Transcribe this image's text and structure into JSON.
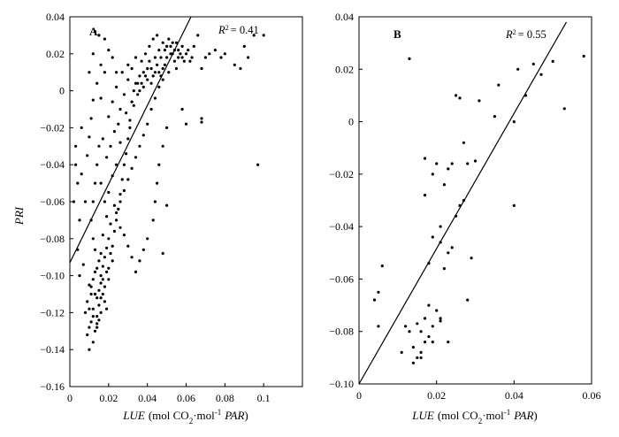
{
  "chart_data": [
    {
      "type": "scatter",
      "panel": "A",
      "r2_text": "= 0.41",
      "xlabel_italic": "LUE",
      "xlabel_unit": "(mol CO",
      "xlabel_sub": "2",
      "xlabel_mid": "·mol",
      "xlabel_sup": "-1",
      "xlabel_tail": "PAR",
      "xlabel_close": ")",
      "ylabel": "PRI",
      "xlim": [
        0,
        0.12
      ],
      "ylim": [
        -0.16,
        0.04
      ],
      "x_ticks": [
        0,
        0.02,
        0.04,
        0.06,
        0.08,
        0.1
      ],
      "x_tick_labels": [
        "0",
        "0.02",
        "0.04",
        "0.06",
        "0.08",
        "0.1"
      ],
      "y_ticks": [
        0.04,
        0.02,
        0,
        -0.02,
        -0.04,
        -0.06,
        -0.08,
        -0.1,
        -0.12,
        -0.14,
        -0.16
      ],
      "y_tick_labels": [
        "0.04",
        "0.02",
        "0",
        "−0.02",
        "−0.04",
        "−0.06",
        "−0.08",
        "−0.10",
        "−0.12",
        "−0.14",
        "−0.16"
      ],
      "fit_line": [
        [
          0,
          -0.093
        ],
        [
          0.0625,
          0.04
        ]
      ],
      "grid": false,
      "points": [
        [
          0.012,
          -0.118
        ],
        [
          0.014,
          -0.112
        ],
        [
          0.01,
          -0.105
        ],
        [
          0.016,
          -0.1
        ],
        [
          0.011,
          -0.125
        ],
        [
          0.013,
          -0.13
        ],
        [
          0.009,
          -0.114
        ],
        [
          0.015,
          -0.108
        ],
        [
          0.017,
          -0.095
        ],
        [
          0.012,
          -0.102
        ],
        [
          0.008,
          -0.12
        ],
        [
          0.01,
          -0.128
        ],
        [
          0.014,
          -0.122
        ],
        [
          0.018,
          -0.09
        ],
        [
          0.019,
          -0.085
        ],
        [
          0.016,
          -0.088
        ],
        [
          0.013,
          -0.098
        ],
        [
          0.011,
          -0.11
        ],
        [
          0.015,
          -0.116
        ],
        [
          0.02,
          -0.08
        ],
        [
          0.01,
          -0.14
        ],
        [
          0.012,
          -0.136
        ],
        [
          0.009,
          -0.132
        ],
        [
          0.014,
          -0.126
        ],
        [
          0.016,
          -0.12
        ],
        [
          0.018,
          -0.106
        ],
        [
          0.02,
          -0.096
        ],
        [
          0.022,
          -0.092
        ],
        [
          0.017,
          -0.078
        ],
        [
          0.021,
          -0.072
        ],
        [
          0.019,
          -0.068
        ],
        [
          0.023,
          -0.062
        ],
        [
          0.018,
          -0.06
        ],
        [
          0.02,
          -0.055
        ],
        [
          0.016,
          -0.05
        ],
        [
          0.022,
          -0.046
        ],
        [
          0.024,
          -0.04
        ],
        [
          0.019,
          -0.036
        ],
        [
          0.021,
          -0.03
        ],
        [
          0.017,
          -0.026
        ],
        [
          0.023,
          -0.022
        ],
        [
          0.025,
          -0.018
        ],
        [
          0.02,
          -0.014
        ],
        [
          0.026,
          -0.01
        ],
        [
          0.022,
          -0.006
        ],
        [
          0.028,
          -0.002
        ],
        [
          0.024,
          0.002
        ],
        [
          0.03,
          0.006
        ],
        [
          0.027,
          0.01
        ],
        [
          0.032,
          0.012
        ],
        [
          0.029,
          -0.012
        ],
        [
          0.031,
          -0.02
        ],
        [
          0.026,
          -0.028
        ],
        [
          0.033,
          -0.008
        ],
        [
          0.035,
          0.004
        ],
        [
          0.03,
          0.014
        ],
        [
          0.034,
          0.018
        ],
        [
          0.036,
          0.008
        ],
        [
          0.038,
          0.01
        ],
        [
          0.04,
          0.006
        ],
        [
          0.037,
          0.016
        ],
        [
          0.042,
          0.012
        ],
        [
          0.039,
          0.02
        ],
        [
          0.044,
          0.018
        ],
        [
          0.041,
          0.024
        ],
        [
          0.046,
          0.022
        ],
        [
          0.043,
          0.028
        ],
        [
          0.048,
          0.026
        ],
        [
          0.045,
          0.03
        ],
        [
          0.05,
          0.024
        ],
        [
          0.047,
          0.018
        ],
        [
          0.052,
          0.02
        ],
        [
          0.049,
          0.014
        ],
        [
          0.054,
          0.016
        ],
        [
          0.051,
          0.01
        ],
        [
          0.056,
          0.022
        ],
        [
          0.053,
          0.026
        ],
        [
          0.058,
          0.018
        ],
        [
          0.055,
          0.012
        ],
        [
          0.06,
          0.02
        ],
        [
          0.062,
          0.016
        ],
        [
          0.064,
          0.024
        ],
        [
          0.066,
          0.03
        ],
        [
          0.068,
          0.012
        ],
        [
          0.07,
          0.018
        ],
        [
          0.072,
          0.02
        ],
        [
          0.075,
          0.022
        ],
        [
          0.078,
          0.018
        ],
        [
          0.08,
          0.02
        ],
        [
          0.085,
          0.014
        ],
        [
          0.088,
          0.012
        ],
        [
          0.09,
          0.024
        ],
        [
          0.092,
          0.018
        ],
        [
          0.095,
          0.03
        ],
        [
          0.1,
          0.03
        ],
        [
          0.097,
          -0.04
        ],
        [
          0.068,
          -0.015
        ],
        [
          0.068,
          -0.017
        ],
        [
          0.06,
          -0.018
        ],
        [
          0.058,
          -0.01
        ],
        [
          0.05,
          -0.02
        ],
        [
          0.048,
          -0.03
        ],
        [
          0.046,
          -0.04
        ],
        [
          0.045,
          -0.05
        ],
        [
          0.044,
          -0.06
        ],
        [
          0.043,
          -0.07
        ],
        [
          0.05,
          -0.062
        ],
        [
          0.048,
          -0.088
        ],
        [
          0.04,
          -0.08
        ],
        [
          0.038,
          -0.086
        ],
        [
          0.036,
          -0.092
        ],
        [
          0.034,
          -0.098
        ],
        [
          0.032,
          -0.09
        ],
        [
          0.03,
          -0.084
        ],
        [
          0.028,
          -0.078
        ],
        [
          0.026,
          -0.074
        ],
        [
          0.024,
          -0.066
        ],
        [
          0.026,
          -0.06
        ],
        [
          0.028,
          -0.054
        ],
        [
          0.03,
          -0.048
        ],
        [
          0.032,
          -0.042
        ],
        [
          0.034,
          -0.036
        ],
        [
          0.036,
          -0.03
        ],
        [
          0.038,
          -0.024
        ],
        [
          0.04,
          -0.018
        ],
        [
          0.042,
          -0.01
        ],
        [
          0.044,
          -0.004
        ],
        [
          0.046,
          0.002
        ],
        [
          0.048,
          0.006
        ],
        [
          0.003,
          -0.04
        ],
        [
          0.004,
          -0.05
        ],
        [
          0.002,
          -0.06
        ],
        [
          0.005,
          -0.07
        ],
        [
          0.003,
          -0.03
        ],
        [
          0.006,
          -0.02
        ],
        [
          0.004,
          -0.086
        ],
        [
          0.007,
          -0.094
        ],
        [
          0.005,
          -0.1
        ],
        [
          0.008,
          -0.06
        ],
        [
          0.006,
          -0.045
        ],
        [
          0.009,
          -0.035
        ],
        [
          0.01,
          -0.025
        ],
        [
          0.011,
          -0.015
        ],
        [
          0.012,
          -0.005
        ],
        [
          0.01,
          0.01
        ],
        [
          0.012,
          0.02
        ],
        [
          0.015,
          0.03
        ],
        [
          0.013,
          0.032
        ],
        [
          0.018,
          0.028
        ],
        [
          0.02,
          0.022
        ],
        [
          0.022,
          0.018
        ],
        [
          0.024,
          0.01
        ],
        [
          0.018,
          0.01
        ],
        [
          0.016,
          0.014
        ],
        [
          0.014,
          0.004
        ],
        [
          0.016,
          -0.004
        ],
        [
          0.015,
          -0.03
        ],
        [
          0.014,
          -0.04
        ],
        [
          0.013,
          -0.05
        ],
        [
          0.012,
          -0.06
        ],
        [
          0.011,
          -0.07
        ],
        [
          0.012,
          -0.08
        ],
        [
          0.013,
          -0.086
        ],
        [
          0.015,
          -0.092
        ],
        [
          0.014,
          -0.096
        ],
        [
          0.016,
          -0.104
        ],
        [
          0.017,
          -0.11
        ],
        [
          0.018,
          -0.114
        ],
        [
          0.019,
          -0.118
        ],
        [
          0.012,
          -0.122
        ],
        [
          0.01,
          -0.118
        ],
        [
          0.011,
          -0.106
        ],
        [
          0.013,
          -0.11
        ],
        [
          0.015,
          -0.124
        ],
        [
          0.014,
          -0.128
        ],
        [
          0.016,
          -0.112
        ],
        [
          0.017,
          -0.102
        ],
        [
          0.019,
          -0.098
        ],
        [
          0.021,
          -0.088
        ],
        [
          0.02,
          -0.102
        ],
        [
          0.022,
          -0.084
        ],
        [
          0.023,
          -0.076
        ],
        [
          0.024,
          -0.07
        ],
        [
          0.025,
          -0.064
        ],
        [
          0.026,
          -0.056
        ],
        [
          0.027,
          -0.048
        ],
        [
          0.028,
          -0.04
        ],
        [
          0.029,
          -0.034
        ],
        [
          0.03,
          -0.026
        ],
        [
          0.031,
          -0.016
        ],
        [
          0.032,
          -0.006
        ],
        [
          0.033,
          0.0
        ],
        [
          0.034,
          0.004
        ],
        [
          0.035,
          -0.002
        ],
        [
          0.036,
          0.0
        ],
        [
          0.037,
          0.004
        ],
        [
          0.038,
          0.002
        ],
        [
          0.039,
          0.008
        ],
        [
          0.04,
          0.012
        ],
        [
          0.041,
          0.016
        ],
        [
          0.042,
          0.004
        ],
        [
          0.043,
          0.008
        ],
        [
          0.044,
          0.01
        ],
        [
          0.045,
          0.014
        ],
        [
          0.046,
          0.01
        ],
        [
          0.047,
          0.008
        ],
        [
          0.048,
          0.012
        ],
        [
          0.049,
          0.022
        ],
        [
          0.05,
          0.018
        ],
        [
          0.051,
          0.028
        ],
        [
          0.052,
          0.024
        ],
        [
          0.053,
          0.02
        ],
        [
          0.054,
          0.022
        ],
        [
          0.055,
          0.026
        ],
        [
          0.056,
          0.018
        ],
        [
          0.057,
          0.02
        ],
        [
          0.058,
          0.024
        ],
        [
          0.059,
          0.016
        ],
        [
          0.061,
          0.022
        ],
        [
          0.063,
          0.018
        ]
      ]
    },
    {
      "type": "scatter",
      "panel": "B",
      "r2_text": "= 0.55",
      "xlabel_italic": "LUE",
      "xlabel_unit": "(mol CO",
      "xlabel_sub": "2",
      "xlabel_mid": "·mol",
      "xlabel_sup": "-1",
      "xlabel_tail": "PAR",
      "xlabel_close": ")",
      "xlim": [
        0,
        0.06
      ],
      "ylim": [
        -0.1,
        0.04
      ],
      "x_ticks": [
        0,
        0.02,
        0.04,
        0.06
      ],
      "x_tick_labels": [
        "0",
        "0.02",
        "0.04",
        "0.06"
      ],
      "y_ticks": [
        0.04,
        0.02,
        0,
        -0.02,
        -0.04,
        -0.06,
        -0.08,
        -0.1
      ],
      "y_tick_labels": [
        "0.04",
        "0.02",
        "0",
        "−0.02",
        "−0.04",
        "−0.06",
        "−0.08",
        "−0.10"
      ],
      "fit_line": [
        [
          0,
          -0.1
        ],
        [
          0.0535,
          0.038
        ]
      ],
      "grid": false,
      "points": [
        [
          0.013,
          0.024
        ],
        [
          0.058,
          0.025
        ],
        [
          0.053,
          0.005
        ],
        [
          0.05,
          0.023
        ],
        [
          0.047,
          0.018
        ],
        [
          0.045,
          0.022
        ],
        [
          0.043,
          0.01
        ],
        [
          0.041,
          0.02
        ],
        [
          0.04,
          0.0
        ],
        [
          0.036,
          0.014
        ],
        [
          0.035,
          0.002
        ],
        [
          0.031,
          0.008
        ],
        [
          0.03,
          -0.015
        ],
        [
          0.028,
          -0.016
        ],
        [
          0.027,
          -0.008
        ],
        [
          0.026,
          0.009
        ],
        [
          0.025,
          0.01
        ],
        [
          0.024,
          -0.016
        ],
        [
          0.023,
          -0.018
        ],
        [
          0.022,
          -0.024
        ],
        [
          0.02,
          -0.016
        ],
        [
          0.019,
          -0.02
        ],
        [
          0.017,
          -0.014
        ],
        [
          0.017,
          -0.028
        ],
        [
          0.04,
          -0.032
        ],
        [
          0.026,
          -0.032
        ],
        [
          0.025,
          -0.036
        ],
        [
          0.023,
          -0.05
        ],
        [
          0.021,
          -0.04
        ],
        [
          0.021,
          -0.046
        ],
        [
          0.019,
          -0.044
        ],
        [
          0.018,
          -0.054
        ],
        [
          0.022,
          -0.056
        ],
        [
          0.024,
          -0.048
        ],
        [
          0.027,
          -0.03
        ],
        [
          0.029,
          -0.052
        ],
        [
          0.028,
          -0.068
        ],
        [
          0.02,
          -0.072
        ],
        [
          0.021,
          -0.075
        ],
        [
          0.019,
          -0.078
        ],
        [
          0.018,
          -0.082
        ],
        [
          0.017,
          -0.084
        ],
        [
          0.016,
          -0.088
        ],
        [
          0.015,
          -0.09
        ],
        [
          0.014,
          -0.086
        ],
        [
          0.013,
          -0.08
        ],
        [
          0.012,
          -0.078
        ],
        [
          0.011,
          -0.088
        ],
        [
          0.014,
          -0.092
        ],
        [
          0.016,
          -0.09
        ],
        [
          0.018,
          -0.07
        ],
        [
          0.017,
          -0.075
        ],
        [
          0.015,
          -0.077
        ],
        [
          0.016,
          -0.08
        ],
        [
          0.019,
          -0.084
        ],
        [
          0.021,
          -0.076
        ],
        [
          0.023,
          -0.084
        ],
        [
          0.006,
          -0.055
        ],
        [
          0.004,
          -0.068
        ],
        [
          0.005,
          -0.065
        ],
        [
          0.005,
          -0.078
        ]
      ]
    }
  ]
}
